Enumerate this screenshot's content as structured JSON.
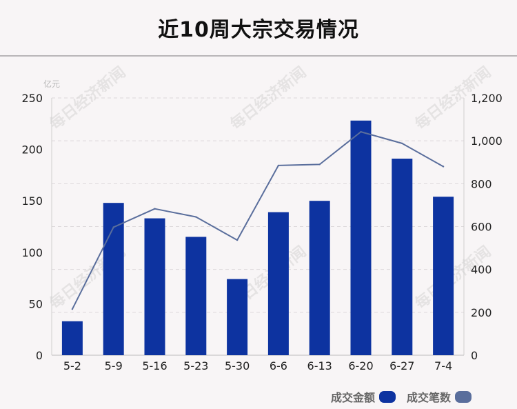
{
  "title": "近10周大宗交易情况",
  "watermark_text": "每日经济新闻",
  "chart_data": {
    "type": "bar",
    "categories": [
      "5-2",
      "5-9",
      "5-16",
      "5-23",
      "5-30",
      "6-6",
      "6-13",
      "6-20",
      "6-27",
      "7-4"
    ],
    "y_left": {
      "unit": "亿元",
      "range": [
        0,
        250
      ],
      "ticks": [
        "0",
        "50",
        "100",
        "150",
        "200",
        "250"
      ]
    },
    "y_right": {
      "range": [
        0,
        1200
      ],
      "ticks": [
        "0",
        "200",
        "400",
        "600",
        "800",
        "1,000",
        "1,200"
      ]
    },
    "series": [
      {
        "name": "成交金额",
        "kind": "bar",
        "axis": "left",
        "color": "#0d33a0",
        "values": [
          33,
          148,
          133,
          115,
          74,
          139,
          150,
          228,
          191,
          154
        ]
      },
      {
        "name": "成交笔数",
        "kind": "line",
        "axis": "right",
        "color": "#5a6e9c",
        "values": [
          215,
          597,
          683,
          645,
          537,
          885,
          890,
          1042,
          988,
          880
        ]
      }
    ],
    "grid": true,
    "legend_position": "bottom-right"
  }
}
